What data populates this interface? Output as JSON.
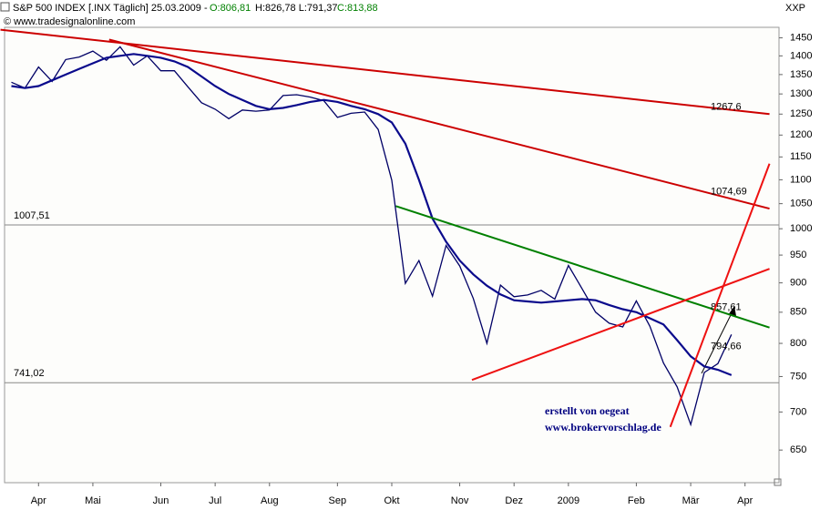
{
  "chart_data": {
    "type": "line",
    "title": "S&P 500 INDEX [.INX  Täglich] 25.03.2009 -",
    "quote": [
      "O:806,81",
      "H:826,78 L:791,37",
      "C:813,88"
    ],
    "source": "© www.tradesignalonline.com",
    "axis_code": "XXP",
    "credit": [
      "erstellt von oegeat",
      "www.brokervorschlag.de"
    ],
    "log_scale": true,
    "categories": [
      null,
      null,
      "Apr",
      null,
      null,
      null,
      "Mai",
      null,
      null,
      null,
      null,
      "Jun",
      null,
      null,
      null,
      "Jul",
      null,
      null,
      null,
      "Aug",
      null,
      null,
      null,
      null,
      "Sep",
      null,
      null,
      null,
      "Okt",
      null,
      null,
      null,
      null,
      "Nov",
      null,
      null,
      null,
      "Dez",
      null,
      null,
      null,
      "2009",
      null,
      null,
      null,
      null,
      "Feb",
      null,
      null,
      null,
      "Mär",
      null,
      null,
      null,
      "Apr",
      null,
      null
    ],
    "series": [
      {
        "color": "#000066",
        "width": 1.3,
        "values": [
          1330,
          1315,
          1370,
          1332,
          1390,
          1397,
          1413,
          1388,
          1425,
          1375,
          1400,
          1360,
          1360,
          1318,
          1278,
          1262,
          1239,
          1260,
          1257,
          1260,
          1296,
          1298,
          1292,
          1283,
          1242,
          1252,
          1255,
          1213,
          1099,
          899,
          940,
          877,
          968,
          930,
          873,
          800,
          896,
          876,
          879,
          887,
          872,
          931,
          890,
          850,
          832,
          826,
          869,
          827,
          770,
          735,
          683,
          756,
          769,
          814,
          null,
          null,
          null
        ]
      },
      {
        "color": "#0a0a8c",
        "width": 2.2,
        "values": [
          1320,
          1315,
          1320,
          1335,
          1350,
          1365,
          1380,
          1395,
          1400,
          1405,
          1400,
          1395,
          1385,
          1370,
          1345,
          1320,
          1300,
          1285,
          1270,
          1262,
          1265,
          1272,
          1280,
          1285,
          1280,
          1270,
          1262,
          1250,
          1230,
          1180,
          1100,
          1020,
          975,
          940,
          915,
          895,
          880,
          870,
          868,
          866,
          868,
          870,
          872,
          870,
          862,
          855,
          850,
          840,
          830,
          805,
          780,
          765,
          760,
          752,
          null,
          null,
          null
        ]
      }
    ],
    "levels": [
      {
        "value": 1007.51,
        "label": "1007,51"
      },
      {
        "value": 741.02,
        "label": "741,02"
      }
    ],
    "trend_lines": [
      {
        "color": "#cc0000",
        "start": [
          -0.8,
          1473
        ],
        "end": [
          55.8,
          1250
        ],
        "value": 1267.6,
        "label": "1267,6"
      },
      {
        "color": "#cc0000",
        "start": [
          7.2,
          1445
        ],
        "end": [
          55.8,
          1040
        ],
        "value": 1074.69,
        "label": "1074,69"
      },
      {
        "color": "#008000",
        "start": [
          28.3,
          1045
        ],
        "end": [
          55.8,
          825
        ],
        "value": 857.61,
        "label": "857,61"
      },
      {
        "color": "#ee1111",
        "start": [
          33.9,
          745
        ],
        "end": [
          55.8,
          925
        ]
      },
      {
        "color": "#ee1111",
        "start": [
          48.5,
          680
        ],
        "end": [
          55.8,
          1135
        ],
        "value": 794.66,
        "label": "794,66"
      }
    ],
    "ylim": [
      610,
      1480
    ],
    "yticks": [
      650,
      700,
      750,
      800,
      850,
      900,
      950,
      1000,
      1050,
      1100,
      1150,
      1200,
      1250,
      1300,
      1350,
      1400,
      1450
    ]
  }
}
